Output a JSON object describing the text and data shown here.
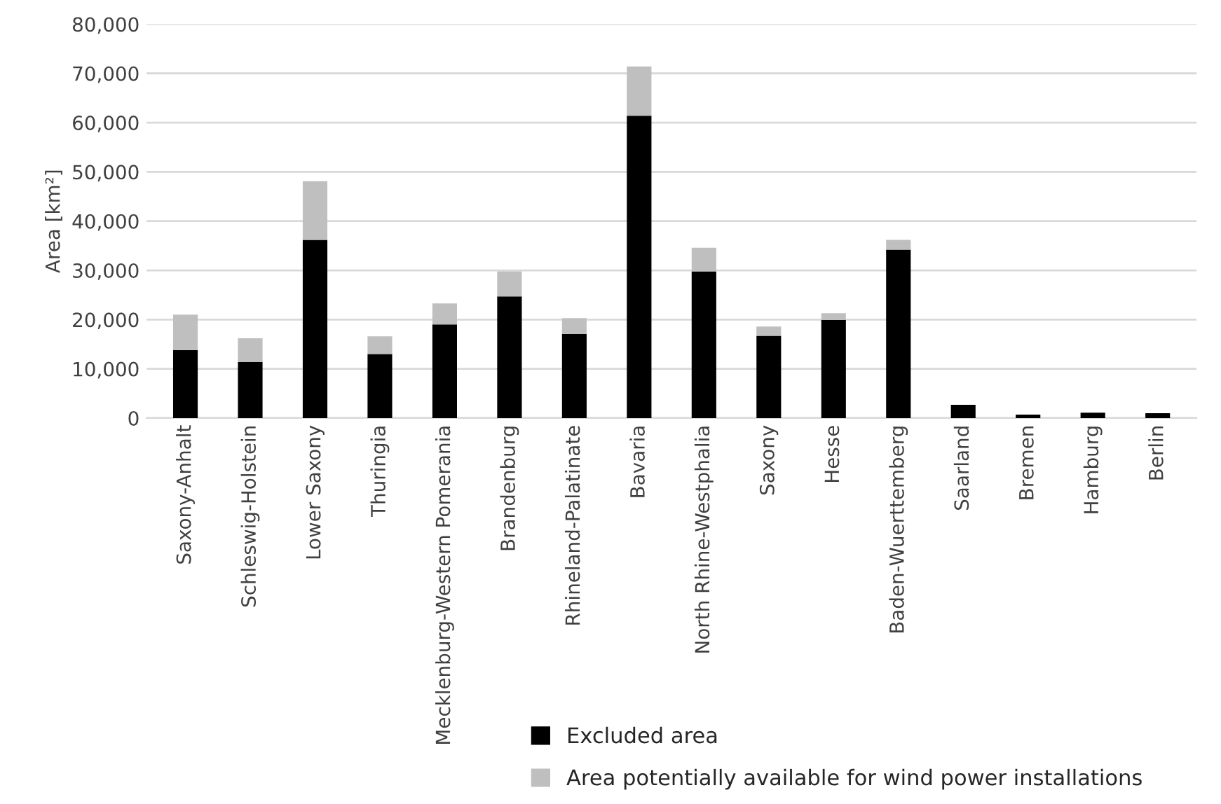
{
  "chart_data": {
    "type": "bar",
    "stacked": true,
    "ylabel": "Area [km²]",
    "categories": [
      "Saxony-Anhalt",
      "Schleswig-Holstein",
      "Lower Saxony",
      "Thuringia",
      "Mecklenburg-Western Pomerania",
      "Brandenburg",
      "Rhineland-Palatinate",
      "Bavaria",
      "North Rhine-Westphalia",
      "Saxony",
      "Hesse",
      "Baden-Wuerttemberg",
      "Saarland",
      "Bremen",
      "Hamburg",
      "Berlin"
    ],
    "series": [
      {
        "name": "Excluded area",
        "color": "#000000",
        "values": [
          13800,
          11400,
          36200,
          13000,
          19000,
          24700,
          17100,
          61400,
          29800,
          16700,
          19900,
          34200,
          2700,
          700,
          1100,
          1000
        ]
      },
      {
        "name": "Area potentially available for wind power installations",
        "color": "#bfbfbf",
        "values": [
          7200,
          4800,
          11900,
          3600,
          4300,
          5100,
          3200,
          10000,
          4800,
          1900,
          1400,
          2000,
          null,
          null,
          null,
          null
        ]
      }
    ],
    "ylim": [
      0,
      80000
    ],
    "yticks": [
      {
        "value": 0,
        "label": "0"
      },
      {
        "value": 10000,
        "label": "10,000"
      },
      {
        "value": 20000,
        "label": "20,000"
      },
      {
        "value": 30000,
        "label": "30,000"
      },
      {
        "value": 40000,
        "label": "40,000"
      },
      {
        "value": 50000,
        "label": "50,000"
      },
      {
        "value": 60000,
        "label": "60,000"
      },
      {
        "value": 70000,
        "label": "70,000"
      },
      {
        "value": 80000,
        "label": "80,000"
      }
    ],
    "grid": "y",
    "legend": "bottom"
  }
}
